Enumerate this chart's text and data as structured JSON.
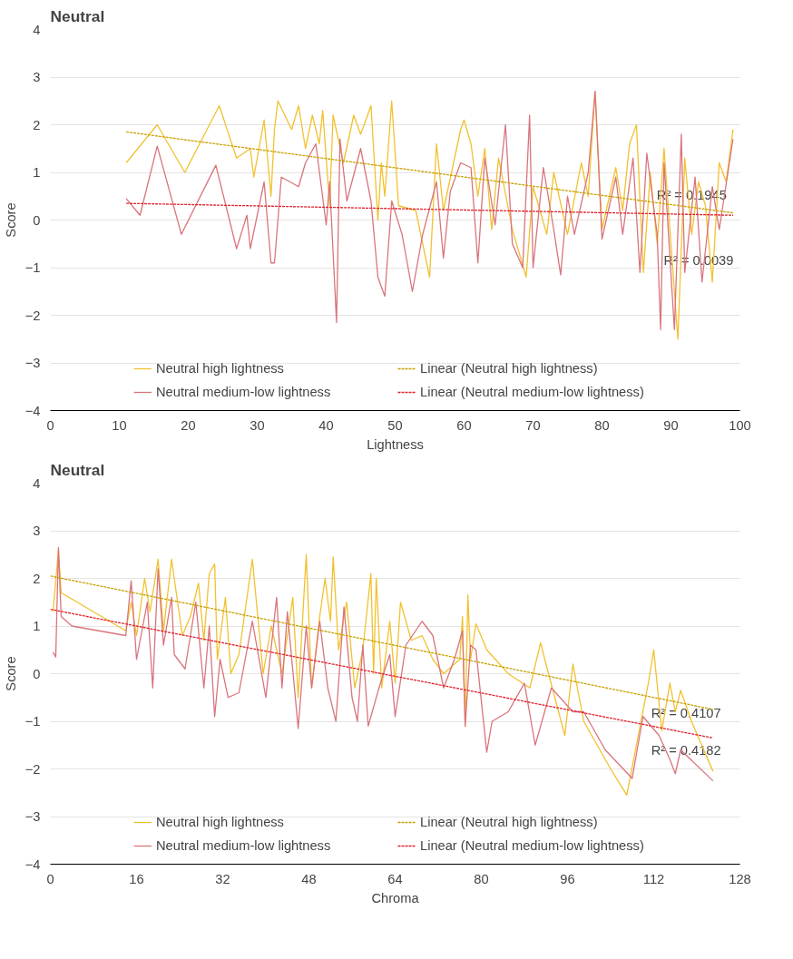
{
  "chart_data": [
    {
      "type": "line",
      "title": "Neutral",
      "xlabel": "Lightness",
      "ylabel": "Score",
      "xlim": [
        0,
        100
      ],
      "xticks": [
        0,
        10,
        20,
        30,
        40,
        50,
        60,
        70,
        80,
        90,
        100
      ],
      "ylim": [
        -4,
        4
      ],
      "yticks": [
        -4,
        -3,
        -2,
        -1,
        0,
        1,
        2,
        3,
        4
      ],
      "grid": "y",
      "legend": "bottom",
      "marker": "none",
      "annotations": [
        {
          "text": "R² = 0.1945",
          "x": 93,
          "y": 0.52
        },
        {
          "text": "R² = 0.0039",
          "x": 94,
          "y": -0.85
        }
      ],
      "series": [
        {
          "name": "Neutral high lightness",
          "color": "#f2c12e",
          "line_style": "solid",
          "x": [
            11,
            15.5,
            19.5,
            24.5,
            27,
            29,
            29.5,
            31,
            32,
            32.5,
            33,
            35,
            36,
            37,
            38,
            39,
            39.5,
            40.5,
            41,
            42.5,
            44,
            45,
            46.5,
            47.5,
            48,
            48.5,
            49.5,
            50.5,
            53,
            55,
            56,
            57,
            59.5,
            60,
            61,
            62,
            63,
            64,
            65,
            67,
            69,
            70,
            72,
            73,
            75,
            77,
            78,
            79,
            80,
            82,
            83,
            84,
            85,
            86,
            87,
            88,
            89,
            91,
            92,
            93,
            94,
            95,
            96,
            97,
            98,
            99
          ],
          "values": [
            1.2,
            2.0,
            1.0,
            2.4,
            1.3,
            1.5,
            0.9,
            2.1,
            0.5,
            1.9,
            2.5,
            1.9,
            2.4,
            1.5,
            2.2,
            1.6,
            2.3,
            0.3,
            2.2,
            1.2,
            2.2,
            1.8,
            2.4,
            0.0,
            1.2,
            0.5,
            2.5,
            0.3,
            0.2,
            -1.2,
            1.6,
            0.2,
            1.9,
            2.1,
            1.6,
            0.5,
            1.5,
            -0.2,
            1.3,
            -0.2,
            -1.2,
            0.7,
            -0.3,
            1.0,
            -0.3,
            1.2,
            0.5,
            2.7,
            -0.2,
            1.1,
            0.2,
            1.6,
            2.0,
            -1.1,
            1.0,
            -0.5,
            1.5,
            -2.5,
            1.3,
            -0.3,
            0.8,
            0.3,
            -1.3,
            1.2,
            0.8,
            1.9
          ]
        },
        {
          "name": "Neutral medium-low lightness",
          "color": "#d9747c",
          "line_style": "solid",
          "x": [
            11,
            13,
            15.5,
            19,
            24,
            27,
            28.5,
            29,
            31,
            32,
            32.5,
            33.5,
            36,
            37,
            38.5,
            40,
            40.5,
            41.5,
            42,
            43,
            45,
            46.5,
            47.5,
            48.5,
            49.5,
            51,
            52.5,
            54,
            56,
            57,
            58,
            59.5,
            61,
            62,
            63,
            64.5,
            66,
            67,
            68.5,
            69.5,
            70,
            71.5,
            73,
            74,
            75,
            76,
            78,
            79,
            80,
            82,
            83,
            84.5,
            85.5,
            86.5,
            88,
            88.5,
            89,
            90.5,
            91.5,
            92,
            93.5,
            94.5,
            96,
            97,
            99
          ],
          "values": [
            0.45,
            0.1,
            1.55,
            -0.3,
            1.15,
            -0.6,
            0.1,
            -0.6,
            0.8,
            -0.9,
            -0.9,
            0.9,
            0.7,
            1.2,
            1.6,
            -0.1,
            0.8,
            -2.15,
            1.7,
            0.4,
            1.5,
            0.4,
            -1.2,
            -1.6,
            0.4,
            -0.3,
            -1.5,
            -0.3,
            0.8,
            -0.8,
            0.6,
            1.2,
            1.1,
            -0.9,
            1.3,
            -0.1,
            2.0,
            -0.5,
            -1.0,
            2.2,
            -1.0,
            1.1,
            -0.2,
            -1.15,
            0.5,
            -0.3,
            1.0,
            2.7,
            -0.4,
            0.9,
            -0.3,
            1.3,
            -1.1,
            1.4,
            -0.3,
            -2.3,
            1.2,
            -2.3,
            1.8,
            -1.1,
            0.9,
            -1.3,
            0.7,
            -0.2,
            1.7
          ]
        },
        {
          "name": "Linear (Neutral high lightness)",
          "color": "#c8a000",
          "line_style": "dashed",
          "x": [
            11,
            99
          ],
          "values": [
            1.85,
            0.15
          ]
        },
        {
          "name": "Linear (Neutral medium-low lightness)",
          "color": "#e0202a",
          "line_style": "dashed",
          "x": [
            11,
            99
          ],
          "values": [
            0.35,
            0.1
          ]
        }
      ]
    },
    {
      "type": "line",
      "title": "Neutral",
      "xlabel": "Chroma",
      "ylabel": "Score",
      "xlim": [
        0,
        128
      ],
      "xticks": [
        0,
        16,
        32,
        48,
        64,
        80,
        96,
        112,
        128
      ],
      "ylim": [
        -4,
        4
      ],
      "yticks": [
        -4,
        -3,
        -2,
        -1,
        0,
        1,
        2,
        3,
        4
      ],
      "grid": "y",
      "legend": "bottom",
      "marker": "none",
      "annotations": [
        {
          "text": "R² = 0.4107",
          "x": 118,
          "y": -0.82
        },
        {
          "text": "R² = 0.4182",
          "x": 118,
          "y": -1.6
        }
      ],
      "series": [
        {
          "name": "Neutral high lightness",
          "color": "#f2c12e",
          "line_style": "solid",
          "x": [
            0.5,
            1.5,
            2,
            5,
            14,
            15,
            16,
            17.5,
            18.5,
            20,
            21,
            22.5,
            24.5,
            26,
            27.5,
            28.5,
            29.5,
            30.5,
            31,
            32.5,
            33.5,
            35,
            37.5,
            39.5,
            41,
            43,
            45,
            46,
            47.5,
            48.5,
            50,
            51,
            52,
            52.5,
            53.5,
            55,
            56.5,
            58,
            59.5,
            60,
            60.5,
            61.5,
            63,
            64,
            65,
            67,
            69,
            71,
            73,
            76,
            76.5,
            77,
            77.5,
            78,
            79,
            81,
            85,
            89,
            91,
            92,
            95.5,
            97,
            99,
            104,
            107,
            111,
            112,
            113.5,
            115,
            116,
            117,
            119,
            123
          ],
          "values": [
            1.3,
            2.6,
            1.7,
            1.5,
            0.9,
            1.5,
            0.8,
            2.0,
            1.3,
            2.4,
            0.9,
            2.4,
            0.8,
            1.2,
            1.9,
            0.7,
            2.1,
            2.3,
            0.3,
            1.6,
            0.0,
            0.4,
            2.4,
            0.0,
            1.0,
            0.0,
            1.6,
            -0.5,
            2.5,
            -0.3,
            1.2,
            2.0,
            1.1,
            2.45,
            0.5,
            1.5,
            -0.3,
            0.5,
            2.1,
            0.0,
            2.0,
            -0.3,
            1.1,
            -0.2,
            1.5,
            0.7,
            0.8,
            0.3,
            0.0,
            0.3,
            1.2,
            -1.1,
            1.65,
            0.3,
            1.05,
            0.5,
            0.0,
            -0.3,
            0.65,
            0.2,
            -1.3,
            0.2,
            -1.0,
            -2.0,
            -2.55,
            -0.2,
            0.5,
            -1.2,
            -0.2,
            -0.8,
            -0.35,
            -1.0,
            -2.05
          ]
        },
        {
          "name": "Neutral medium-low lightness",
          "color": "#d9747c",
          "line_style": "solid",
          "x": [
            0.5,
            1,
            1.5,
            2,
            4,
            14,
            15,
            16,
            18,
            19,
            20,
            21,
            22.5,
            23,
            25,
            27,
            28.5,
            29.5,
            30.5,
            31.5,
            33,
            35,
            37.5,
            40,
            42,
            43,
            44,
            46,
            47.5,
            48.5,
            50,
            51.5,
            53,
            54.5,
            56,
            57,
            58,
            59,
            61,
            63,
            64,
            66,
            69,
            71,
            73,
            75,
            76.5,
            77,
            78,
            79,
            81,
            82,
            85,
            88,
            90,
            93,
            97,
            99,
            103,
            108,
            110,
            113,
            115,
            116,
            117,
            123
          ],
          "values": [
            0.45,
            0.35,
            2.65,
            1.2,
            1.0,
            0.8,
            1.95,
            0.3,
            1.5,
            -0.3,
            2.2,
            0.6,
            1.6,
            0.4,
            0.1,
            1.5,
            -0.3,
            1.0,
            -0.9,
            0.3,
            -0.5,
            -0.4,
            1.1,
            -0.5,
            1.6,
            -0.3,
            1.3,
            -1.15,
            1.0,
            -0.3,
            1.1,
            -0.3,
            -1.0,
            1.4,
            -0.5,
            -1.0,
            0.6,
            -1.1,
            -0.3,
            0.4,
            -0.9,
            0.6,
            1.1,
            0.8,
            -0.3,
            0.3,
            0.9,
            -1.1,
            0.6,
            0.5,
            -1.65,
            -1.0,
            -0.8,
            -0.2,
            -1.5,
            -0.3,
            -0.8,
            -0.8,
            -1.6,
            -2.2,
            -0.9,
            -1.3,
            -1.8,
            -2.1,
            -1.6,
            -2.25
          ]
        },
        {
          "name": "Linear (Neutral high lightness)",
          "color": "#c8a000",
          "line_style": "dashed",
          "x": [
            0,
            123
          ],
          "values": [
            2.05,
            -0.75
          ]
        },
        {
          "name": "Linear (Neutral medium-low lightness)",
          "color": "#e0202a",
          "line_style": "dashed",
          "x": [
            0,
            123
          ],
          "values": [
            1.35,
            -1.35
          ]
        }
      ]
    }
  ]
}
